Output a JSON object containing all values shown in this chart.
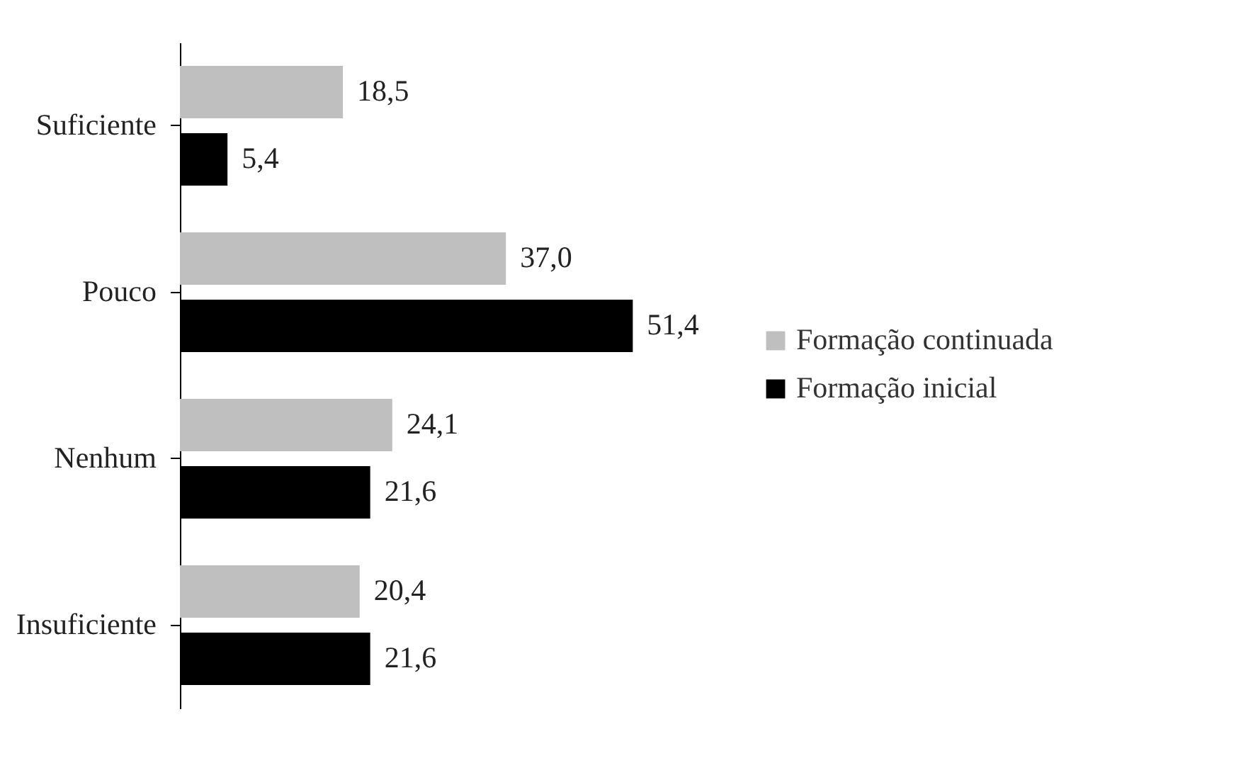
{
  "chart_data": {
    "type": "bar",
    "orientation": "horizontal",
    "categories": [
      "Suficiente",
      "Pouco",
      "Nenhum",
      "Insuficiente"
    ],
    "series": [
      {
        "name": "Formação continuada",
        "color": "#bfbfbf",
        "values": [
          18.5,
          37.0,
          24.1,
          20.4
        ],
        "value_labels": [
          "18,5",
          "37,0",
          "24,1",
          "20,4"
        ]
      },
      {
        "name": "Formação inicial",
        "color": "#000000",
        "values": [
          5.4,
          51.4,
          21.6,
          21.6
        ],
        "value_labels": [
          "5,4",
          "51,4",
          "21,6",
          "21,6"
        ]
      }
    ],
    "legend": "right"
  }
}
